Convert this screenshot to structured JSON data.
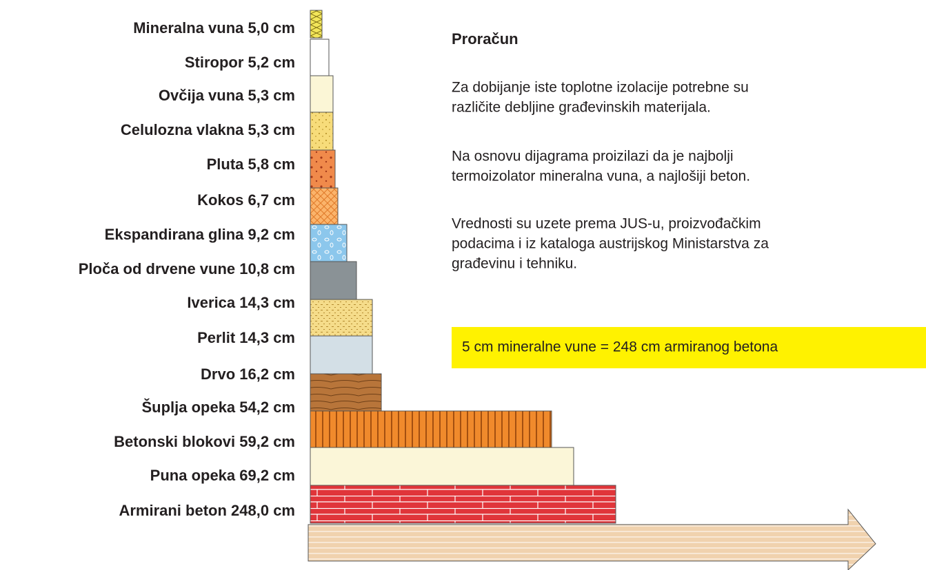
{
  "layers": [
    {
      "label": "Mineralna vuna 5,0 cm"
    },
    {
      "label": "Stiropor 5,2 cm"
    },
    {
      "label": "Ovčija vuna 5,3 cm"
    },
    {
      "label": "Celulozna vlakna 5,3 cm"
    },
    {
      "label": "Pluta 5,8 cm"
    },
    {
      "label": "Kokos 6,7 cm"
    },
    {
      "label": "Ekspandirana glina 9,2 cm"
    },
    {
      "label": "Ploča od drvene vune 10,8 cm"
    },
    {
      "label": "Iverica 14,3 cm"
    },
    {
      "label": "Perlit 14,3 cm"
    },
    {
      "label": "Drvo 16,2 cm"
    },
    {
      "label": "Šuplja opeka 54,2 cm"
    },
    {
      "label": "Betonski blokovi 59,2 cm"
    },
    {
      "label": "Puna opeka 69,2 cm"
    },
    {
      "label": "Armirani beton 248,0 cm"
    }
  ],
  "panel": {
    "title": "Proračun",
    "paragraphs": [
      [
        "Za dobijanje iste toplotne izolacije potrebne su",
        "različite debljine građevinskih materijala."
      ],
      [
        "Na osnovu dijagrama proizilazi da je najbolji",
        "termoizolator mineralna vuna, a najlošiji beton."
      ],
      [
        "Vrednosti su uzete prema JUS-u, proizvođačkim",
        "podacima i iz kataloga austrijskog Ministarstva za",
        "građevinu i tehniku."
      ]
    ],
    "highlight": "5 cm mineralne vune = 248 cm armiranog betona"
  }
}
